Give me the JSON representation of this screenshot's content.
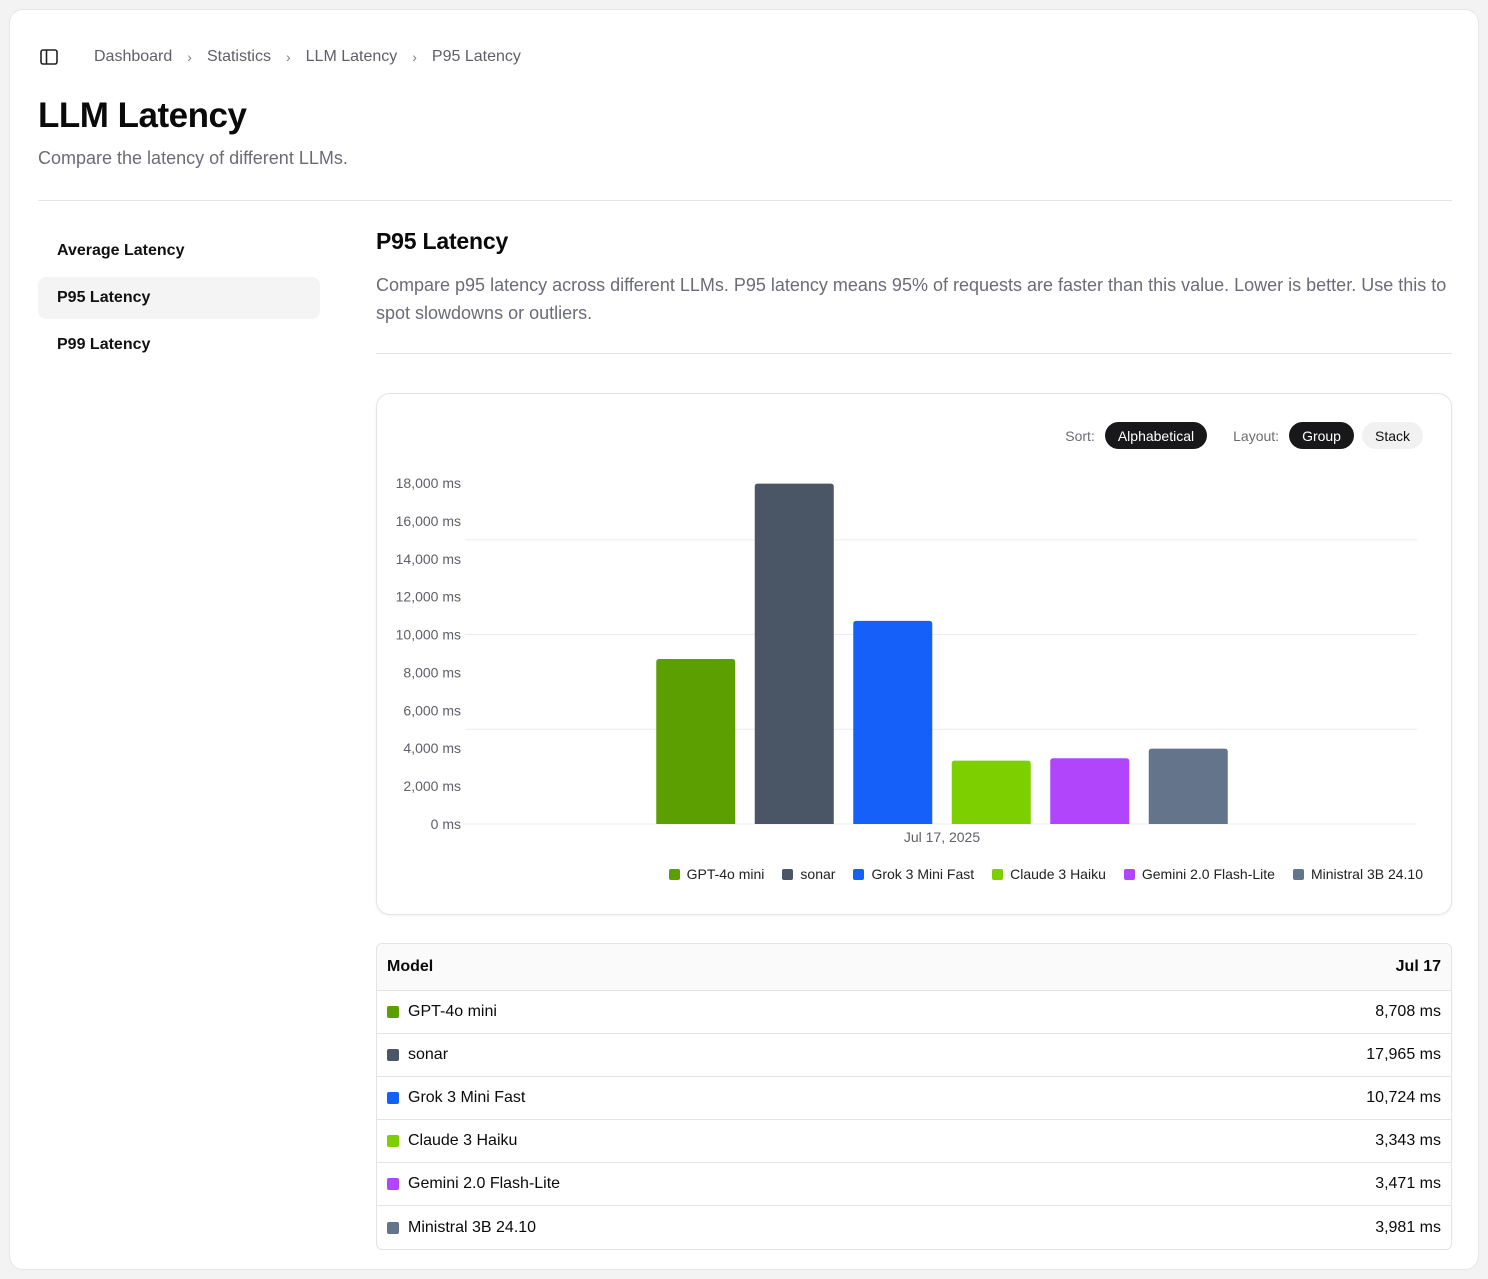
{
  "breadcrumb": [
    "Dashboard",
    "Statistics",
    "LLM Latency",
    "P95 Latency"
  ],
  "page": {
    "title": "LLM Latency",
    "subtitle": "Compare the latency of different LLMs."
  },
  "nav": {
    "items": [
      {
        "label": "Average Latency",
        "active": false
      },
      {
        "label": "P95 Latency",
        "active": true
      },
      {
        "label": "P99 Latency",
        "active": false
      }
    ]
  },
  "section": {
    "title": "P95 Latency",
    "description": "Compare p95 latency across different LLMs. P95 latency means 95% of requests are faster than this value. Lower is better. Use this to spot slowdowns or outliers."
  },
  "controls": {
    "sort_label": "Sort:",
    "sort_value": "Alphabetical",
    "layout_label": "Layout:",
    "layout_options": [
      "Group",
      "Stack"
    ],
    "layout_selected": "Group"
  },
  "chart_data": {
    "type": "bar",
    "categories": [
      "Jul 17, 2025"
    ],
    "series": [
      {
        "name": "GPT-4o mini",
        "values": [
          8708
        ],
        "color": "#5ba000"
      },
      {
        "name": "sonar",
        "values": [
          17965
        ],
        "color": "#4a5566"
      },
      {
        "name": "Grok 3 Mini Fast",
        "values": [
          10724
        ],
        "color": "#1660fa"
      },
      {
        "name": "Claude 3 Haiku",
        "values": [
          3343
        ],
        "color": "#7dcf00"
      },
      {
        "name": "Gemini 2.0 Flash-Lite",
        "values": [
          3471
        ],
        "color": "#b045fb"
      },
      {
        "name": "Ministral 3B 24.10",
        "values": [
          3981
        ],
        "color": "#64748b"
      }
    ],
    "yticks": [
      "0 ms",
      "2,000 ms",
      "4,000 ms",
      "6,000 ms",
      "8,000 ms",
      "10,000 ms",
      "12,000 ms",
      "14,000 ms",
      "16,000 ms",
      "18,000 ms"
    ],
    "ylim": [
      0,
      18000
    ],
    "grid": true,
    "legend": "bottom-right"
  },
  "table": {
    "header_model": "Model",
    "header_date": "Jul 17",
    "rows": [
      {
        "model": "GPT-4o mini",
        "value": "8,708 ms",
        "color": "#5ba000"
      },
      {
        "model": "sonar",
        "value": "17,965 ms",
        "color": "#4a5566"
      },
      {
        "model": "Grok 3 Mini Fast",
        "value": "10,724 ms",
        "color": "#1660fa"
      },
      {
        "model": "Claude 3 Haiku",
        "value": "3,343 ms",
        "color": "#7dcf00"
      },
      {
        "model": "Gemini 2.0 Flash-Lite",
        "value": "3,471 ms",
        "color": "#b045fb"
      },
      {
        "model": "Ministral 3B 24.10",
        "value": "3,981 ms",
        "color": "#64748b"
      }
    ]
  }
}
